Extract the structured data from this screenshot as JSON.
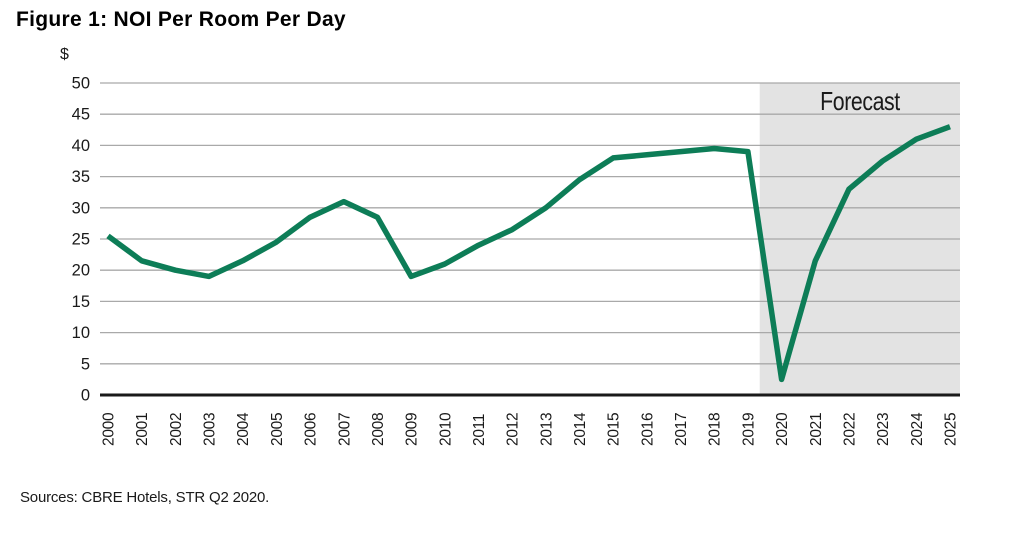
{
  "figure": {
    "title": "Figure 1: NOI Per Room Per Day",
    "source_note": "Sources: CBRE Hotels, STR Q2 2020."
  },
  "colors": {
    "line": "#0d7d57",
    "gridline": "#a9a9a9",
    "zero_axis": "#1a1a1a",
    "forecast_band": "#e3e3e3",
    "text": "#1a1a1a"
  },
  "chart_data": {
    "type": "line",
    "title": "Figure 1: NOI Per Room Per Day",
    "xlabel": "",
    "ylabel": "$",
    "ylim": [
      0,
      50
    ],
    "ytick_step": 5,
    "grid": true,
    "legend_position": "none",
    "categories": [
      2000,
      2001,
      2002,
      2003,
      2004,
      2005,
      2006,
      2007,
      2008,
      2009,
      2010,
      2011,
      2012,
      2013,
      2014,
      2015,
      2016,
      2017,
      2018,
      2019,
      2020,
      2021,
      2022,
      2023,
      2024,
      2025
    ],
    "series": [
      {
        "name": "NOI Per Room Per Day ($)",
        "values": [
          25.5,
          21.5,
          20,
          19,
          21.5,
          24.5,
          28.5,
          31,
          28.5,
          19,
          21,
          24,
          26.5,
          30,
          34.5,
          38,
          38.5,
          39,
          39.5,
          39,
          2.5,
          21.5,
          33,
          37.5,
          41,
          43
        ]
      }
    ],
    "forecast_region": {
      "label": "Forecast",
      "start_year": 2020,
      "end_year": 2025
    }
  }
}
